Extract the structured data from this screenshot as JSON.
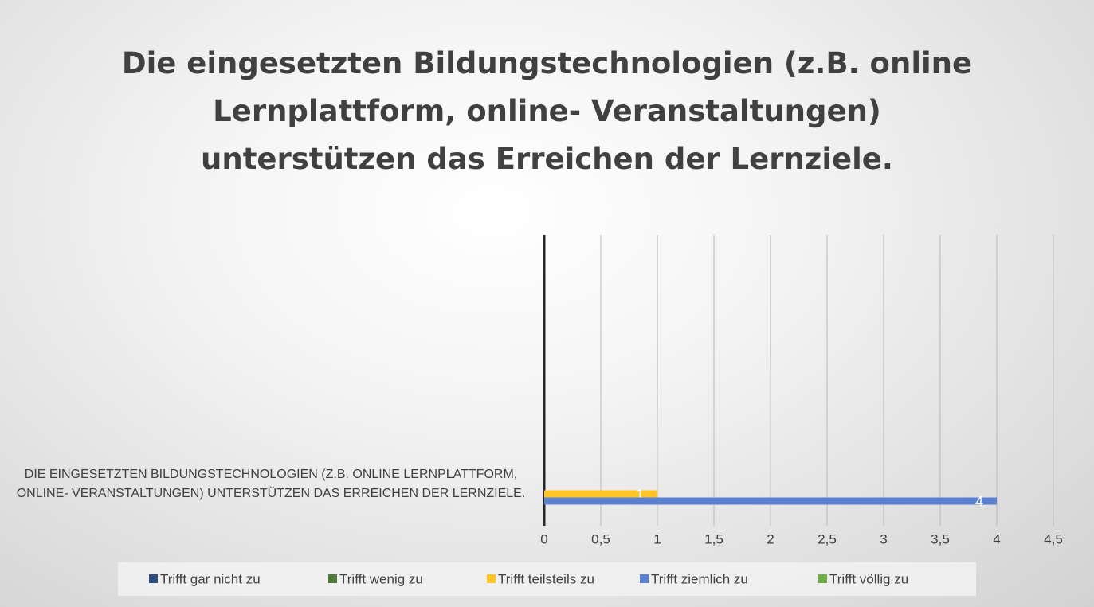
{
  "chart_data": {
    "type": "bar",
    "orientation": "horizontal",
    "title": "Die eingesetzten Bildungstechnologien (z.B. online Lernplattform, online- Veranstaltungen) unterstützen das Erreichen der Lernziele.",
    "categories": [
      "DIE EINGESETZTEN BILDUNGSTECHNOLOGIEN (Z.B. ONLINE LERNPLATTFORM, ONLINE- VERANSTALTUNGEN) UNTERSTÜTZEN DAS ERREICHEN DER LERNZIELE."
    ],
    "series": [
      {
        "name": "Trifft gar nicht zu",
        "color": "#2f4b7c",
        "values": [
          null
        ]
      },
      {
        "name": "Trifft wenig zu",
        "color": "#4e7a3a",
        "values": [
          null
        ]
      },
      {
        "name": "Trifft teilsteils zu",
        "color": "#ffc425",
        "values": [
          1
        ]
      },
      {
        "name": "Trifft ziemlich zu",
        "color": "#5b80cf",
        "values": [
          4
        ]
      },
      {
        "name": "Trifft völlig zu",
        "color": "#70ad47",
        "values": [
          null
        ]
      }
    ],
    "xlim": [
      0,
      4.5
    ],
    "xticks": [
      0,
      {
        "value": 0.5,
        "label": "0,5"
      },
      1,
      {
        "value": 1.5,
        "label": "1,5"
      },
      2,
      {
        "value": 2.5,
        "label": "2,5"
      },
      3,
      {
        "value": 3.5,
        "label": "3,5"
      },
      4,
      {
        "value": 4.5,
        "label": "4,5"
      }
    ],
    "grid": true,
    "legend": "bottom"
  }
}
